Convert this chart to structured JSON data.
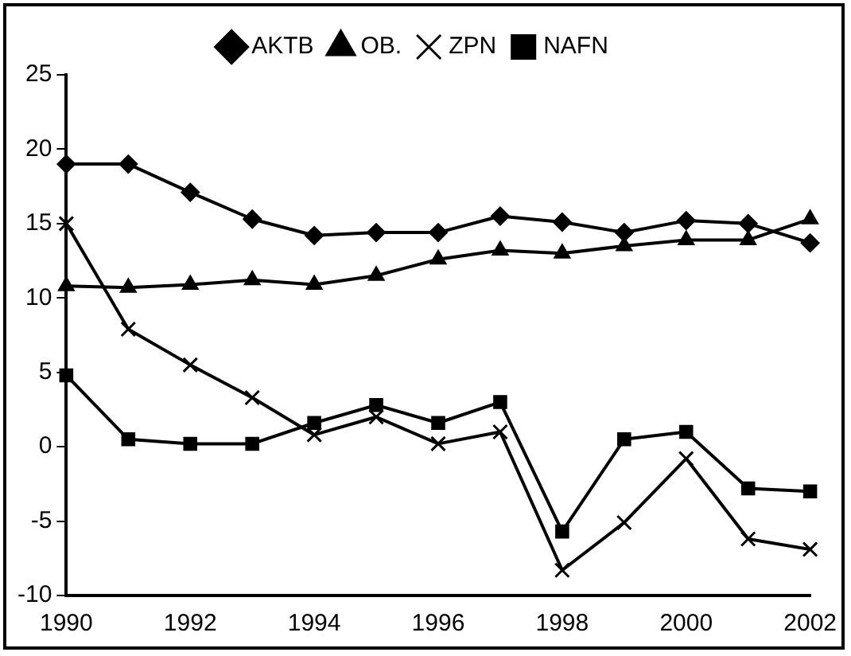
{
  "chart_data": {
    "type": "line",
    "categories": [
      "1990",
      null,
      "1992",
      null,
      "1994",
      null,
      "1996",
      null,
      "1998",
      null,
      "2000",
      null,
      "2002"
    ],
    "series": [
      {
        "name": "AKTB",
        "color": "#000000",
        "marker": "diamond",
        "values": [
          19,
          19,
          17.1,
          15.3,
          14.2,
          14.4,
          14.4,
          15.5,
          15.1,
          14.4,
          15.2,
          15,
          13.7
        ]
      },
      {
        "name": "OB.",
        "color": "#000000",
        "marker": "triangle",
        "values": [
          10.8,
          10.7,
          10.9,
          11.2,
          10.9,
          11.5,
          12.6,
          13.2,
          13,
          13.5,
          13.9,
          13.9,
          15.3
        ]
      },
      {
        "name": "ZPN",
        "color": "#000000",
        "marker": "cross",
        "values": [
          15,
          7.9,
          5.5,
          3.3,
          0.8,
          2,
          0.2,
          1,
          -8.3,
          -5.1,
          -0.8,
          -6.2,
          -6.9
        ]
      },
      {
        "name": "NAFN",
        "color": "#000000",
        "marker": "square",
        "values": [
          4.8,
          0.5,
          0.2,
          0.2,
          1.6,
          2.8,
          1.6,
          3,
          -5.7,
          0.5,
          1,
          -2.8,
          -3
        ]
      }
    ],
    "ylim": [
      -10,
      25
    ],
    "yticks": [
      -10,
      -5,
      0,
      5,
      10,
      15,
      20,
      25
    ],
    "grid": false,
    "legend": "top"
  }
}
